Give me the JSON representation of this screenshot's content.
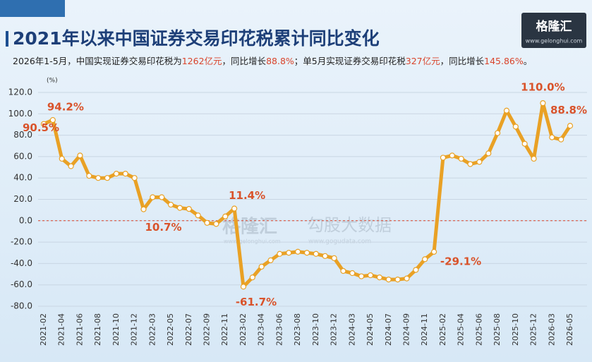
{
  "chart_data": {
    "type": "line",
    "title": "2021年以来中国证券交易印花税累计同比变化",
    "subtitle": [
      {
        "text": "2026年1-5月，中国实现证券交易印花税为",
        "color": "#222222"
      },
      {
        "text": "1262亿元",
        "color": "#d9442b"
      },
      {
        "text": "，同比增长",
        "color": "#222222"
      },
      {
        "text": "88.8%",
        "color": "#d9442b"
      },
      {
        "text": "；单5月实现证券交易印花税",
        "color": "#222222"
      },
      {
        "text": "327亿元",
        "color": "#d9442b"
      },
      {
        "text": "，同比增长",
        "color": "#222222"
      },
      {
        "text": "145.86%",
        "color": "#d9442b"
      },
      {
        "text": "。",
        "color": "#222222"
      }
    ],
    "y_unit": "(%)",
    "logo": {
      "name": "格隆汇",
      "url": "www.gelonghui.com"
    },
    "watermark": {
      "name": "格隆汇",
      "url": "www.gelonghui.com",
      "brand": "勾股大数据",
      "brand_url": "www.gogudata.com"
    },
    "categories": [
      "2021-02",
      null,
      "2021-04",
      null,
      "2021-06",
      null,
      "2021-08",
      null,
      "2021-10",
      null,
      "2021-12",
      null,
      "2022-03",
      null,
      "2022-05",
      null,
      "2022-07",
      null,
      "2022-09",
      null,
      "2022-11",
      null,
      "2023-02",
      null,
      "2023-04",
      null,
      "2023-06",
      null,
      "2023-08",
      null,
      "2023-10",
      null,
      "2023-12",
      null,
      "2024-03",
      null,
      "2024-05",
      null,
      "2024-07",
      null,
      "2024-09",
      null,
      "2024-11",
      null,
      "2025-02",
      null,
      "2025-04",
      null,
      "2025-06",
      null,
      "2025-08",
      null,
      "2025-10",
      null,
      "2025-12",
      null,
      "2026-03",
      null,
      "2026-05"
    ],
    "series": [
      {
        "name": "累计同比",
        "color": "#e9a125",
        "values": [
          90.5,
          94.2,
          58,
          51,
          61,
          42,
          40,
          40,
          44,
          44,
          40,
          10.7,
          22,
          22,
          15,
          12,
          11,
          5,
          -2,
          -3,
          4,
          11.4,
          -61.7,
          -53,
          -43,
          -37,
          -31,
          -30,
          -29,
          -30,
          -31,
          -33,
          -35,
          -47,
          -49,
          -52,
          -51,
          -53,
          -55,
          -55,
          -54,
          -46,
          -36,
          -29.1,
          59,
          61,
          58,
          53,
          55,
          63,
          82,
          103,
          88,
          72,
          58,
          110.0,
          78,
          76,
          88.8
        ],
        "value_labels": [
          "90.5%",
          "94.2%",
          null,
          null,
          null,
          null,
          null,
          null,
          null,
          null,
          null,
          "10.7%",
          null,
          null,
          null,
          null,
          null,
          null,
          null,
          null,
          null,
          "11.4%",
          "-61.7%",
          null,
          null,
          null,
          null,
          null,
          null,
          null,
          null,
          null,
          null,
          null,
          null,
          null,
          null,
          null,
          null,
          null,
          null,
          null,
          null,
          "-29.1%",
          null,
          null,
          null,
          null,
          null,
          null,
          null,
          null,
          null,
          null,
          null,
          "110.0%",
          null,
          null,
          "88.8%"
        ]
      }
    ],
    "label_color": "#d9532b",
    "ylim": [
      -80,
      120
    ],
    "yticks": [
      {
        "value": -80,
        "label": "-80.0"
      },
      {
        "value": -60,
        "label": "-60.0"
      },
      {
        "value": -40,
        "label": "-40.0"
      },
      {
        "value": -20,
        "label": "-20.0"
      },
      {
        "value": 0,
        "label": "0.0"
      },
      {
        "value": 20,
        "label": "20.0"
      },
      {
        "value": 40,
        "label": "40.0"
      },
      {
        "value": 60,
        "label": "60.0"
      },
      {
        "value": 80,
        "label": "80.0"
      },
      {
        "value": 100,
        "label": "100.0"
      },
      {
        "value": 120,
        "label": "120.0"
      }
    ],
    "grid": true,
    "zero_line": {
      "value": 0,
      "color": "#d9442b"
    }
  }
}
